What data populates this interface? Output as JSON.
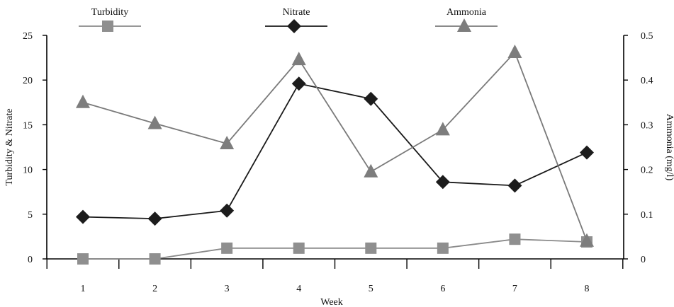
{
  "chart_data": {
    "type": "line",
    "xlabel": "Week",
    "ylabel": "Turbidity & Nitrate",
    "y2label": "Ammonia (mg/l)",
    "x": [
      1,
      2,
      3,
      4,
      5,
      6,
      7,
      8
    ],
    "x_tick_labels": [
      "1",
      "2",
      "3",
      "4",
      "5",
      "6",
      "7",
      "8"
    ],
    "ylim": [
      0,
      25
    ],
    "y_ticks": [
      "0",
      "5",
      "10",
      "15",
      "20",
      "25"
    ],
    "y2lim": [
      0,
      0.5
    ],
    "y2_ticks": [
      "0",
      "0.1",
      "0.2",
      "0.3",
      "0.4",
      "0.5"
    ],
    "grid": false,
    "legend_position": "top",
    "series": [
      {
        "name": "Turbidity",
        "axis": "left",
        "marker": "square",
        "line_color": "#8a8a8a",
        "marker_color": "#8f8f8f",
        "values": [
          0,
          0,
          1.2,
          1.2,
          1.2,
          1.2,
          2.2,
          1.9
        ]
      },
      {
        "name": "Nitrate",
        "axis": "left",
        "marker": "diamond",
        "line_color": "#1a1a1a",
        "marker_color": "#1c1c1c",
        "values": [
          4.7,
          4.5,
          5.4,
          19.6,
          17.9,
          8.6,
          8.2,
          11.9
        ]
      },
      {
        "name": "Ammonia",
        "axis": "right",
        "marker": "triangle",
        "line_color": "#7a7a7a",
        "marker_color": "#7d7d7d",
        "values": [
          0.35,
          0.303,
          0.258,
          0.446,
          0.195,
          0.289,
          0.462,
          0.04
        ]
      }
    ]
  }
}
